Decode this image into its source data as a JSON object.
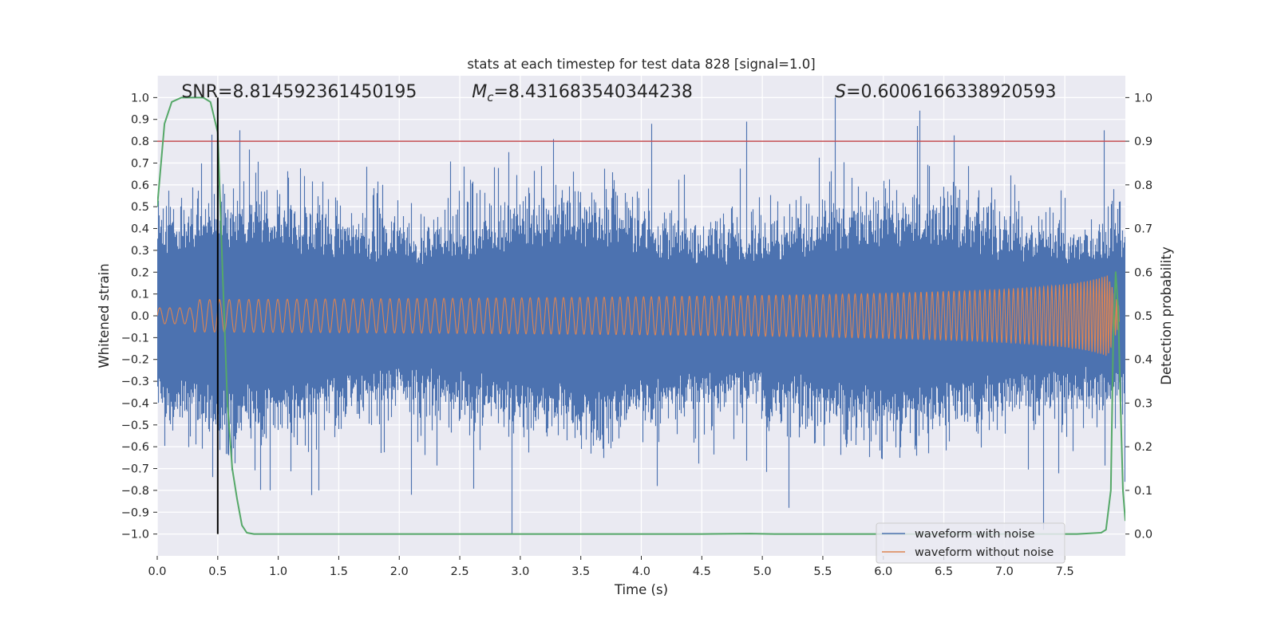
{
  "chart_data": {
    "type": "line",
    "title": "stats at each timestep for test data 828 [signal=1.0]",
    "xlabel": "Time (s)",
    "ylabel": "Whitened strain",
    "y2label": "Detection probability",
    "xlim": [
      0.0,
      8.0
    ],
    "ylim": [
      -1.1,
      1.1
    ],
    "y2lim": [
      -0.05,
      1.05
    ],
    "x_ticks": [
      "0.0",
      "0.5",
      "1.0",
      "1.5",
      "2.0",
      "2.5",
      "3.0",
      "3.5",
      "4.0",
      "4.5",
      "5.0",
      "5.5",
      "6.0",
      "6.5",
      "7.0",
      "7.5"
    ],
    "y_ticks": [
      "1.0",
      "0.9",
      "0.8",
      "0.7",
      "0.6",
      "0.5",
      "0.4",
      "0.3",
      "0.2",
      "0.1",
      "0.0",
      "−0.1",
      "−0.2",
      "−0.3",
      "−0.4",
      "−0.5",
      "−0.6",
      "−0.7",
      "−0.8",
      "−0.9",
      "−1.0"
    ],
    "y2_ticks": [
      "1.0",
      "0.9",
      "0.8",
      "0.7",
      "0.6",
      "0.5",
      "0.4",
      "0.3",
      "0.2",
      "0.1",
      "0.0"
    ],
    "grid": true,
    "legend_position": "lower-right",
    "annotations": {
      "snr": "SNR=8.814592361450195",
      "mc_symbol": "M",
      "mc_sub": "c",
      "mc_value": "=8.431683540344238",
      "s_symbol": "S",
      "s_value": "=0.6006166338920593"
    },
    "threshold": {
      "y2": 0.9,
      "color": "#c44e52"
    },
    "marker_line": {
      "x": 0.5,
      "y_range": [
        -1.0,
        1.0
      ],
      "color": "#000000"
    },
    "series": [
      {
        "name": "waveform with noise",
        "axis": "left",
        "color": "#4c72b0",
        "kind": "noise",
        "x_range": [
          0.0,
          8.0
        ],
        "typical_envelope": 0.35,
        "min": -1.0,
        "max": 1.0,
        "notable_peaks": [
          {
            "x": 0.45,
            "y": 0.83
          },
          {
            "x": 0.68,
            "y": 0.85
          },
          {
            "x": 2.9,
            "y": 0.75
          },
          {
            "x": 3.27,
            "y": 0.81
          },
          {
            "x": 4.08,
            "y": 0.88
          },
          {
            "x": 4.87,
            "y": 0.89
          },
          {
            "x": 5.6,
            "y": 1.0
          },
          {
            "x": 6.3,
            "y": 0.94
          },
          {
            "x": 7.82,
            "y": 0.85
          },
          {
            "x": 0.93,
            "y": -0.8
          },
          {
            "x": 1.33,
            "y": -0.8
          },
          {
            "x": 2.1,
            "y": -0.82
          },
          {
            "x": 2.93,
            "y": -1.0
          },
          {
            "x": 4.13,
            "y": -0.78
          },
          {
            "x": 5.22,
            "y": -0.88
          },
          {
            "x": 7.32,
            "y": -0.98
          }
        ]
      },
      {
        "name": "waveform without noise",
        "axis": "left",
        "color": "#dd8452",
        "kind": "chirp",
        "x_range": [
          0.0,
          7.95
        ],
        "peak_amplitude": 0.21,
        "peak_time": 7.93
      },
      {
        "name": "detection probability",
        "axis": "right",
        "color": "#55a868",
        "kind": "probability",
        "x": [
          0.0,
          0.06,
          0.12,
          0.2,
          0.3,
          0.38,
          0.44,
          0.5,
          0.54,
          0.58,
          0.62,
          0.66,
          0.7,
          0.74,
          0.8,
          1.5,
          3.0,
          4.5,
          4.9,
          5.1,
          6.0,
          7.0,
          7.6,
          7.8,
          7.84,
          7.88,
          7.9,
          7.92,
          7.94,
          7.96,
          7.98,
          8.0
        ],
        "y": [
          0.75,
          0.94,
          0.99,
          1.0,
          1.0,
          1.0,
          0.99,
          0.92,
          0.6,
          0.3,
          0.15,
          0.08,
          0.02,
          0.003,
          0.0,
          0.0,
          0.0,
          0.0,
          0.001,
          0.0,
          0.0,
          0.0,
          0.0,
          0.003,
          0.01,
          0.1,
          0.45,
          0.6,
          0.52,
          0.3,
          0.1,
          0.03
        ]
      }
    ]
  }
}
